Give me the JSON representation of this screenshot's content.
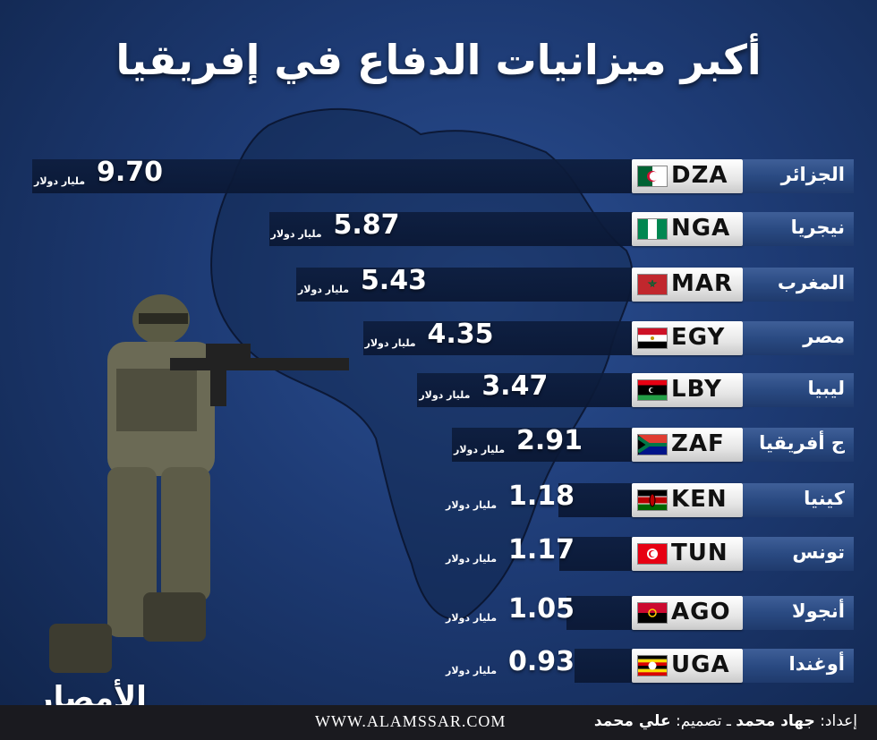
{
  "title": "أكبر ميزانيات الدفاع في إفريقيا",
  "unit": "مليار دولار",
  "chart_data": {
    "type": "bar",
    "orientation": "horizontal",
    "title": "أكبر ميزانيات الدفاع في إفريقيا",
    "value_unit": "مليار دولار",
    "categories": [
      "الجزائر",
      "نيجريا",
      "المغرب",
      "مصر",
      "ليبيا",
      "ج أفريقيا",
      "كينيا",
      "تونس",
      "أنجولا",
      "أوغندا"
    ],
    "codes": [
      "DZA",
      "NGA",
      "MAR",
      "EGY",
      "LBY",
      "ZAF",
      "KEN",
      "TUN",
      "AGO",
      "UGA"
    ],
    "value_labels": [
      "9.70",
      "5.87",
      "5.43",
      "4.35",
      "3.47",
      "2.91",
      "1.18",
      "1.17",
      "1.05",
      "0.93"
    ],
    "values": [
      9.7,
      5.87,
      5.43,
      4.35,
      3.47,
      2.91,
      1.18,
      1.17,
      1.05,
      0.93
    ]
  },
  "logo_text": "الأمصار",
  "footer": {
    "url": "WWW.ALAMSSAR.COM",
    "prepared_by_label": "إعداد:",
    "prepared_by": "جهاد محمد",
    "separator": "ـ",
    "design_label": "تصميم:",
    "designer": "علي محمد"
  },
  "colors": {
    "background": "#1d3a73",
    "bar": "#0b1a38",
    "label_box": "#2a4a82",
    "plate": "#e6e6e6"
  }
}
